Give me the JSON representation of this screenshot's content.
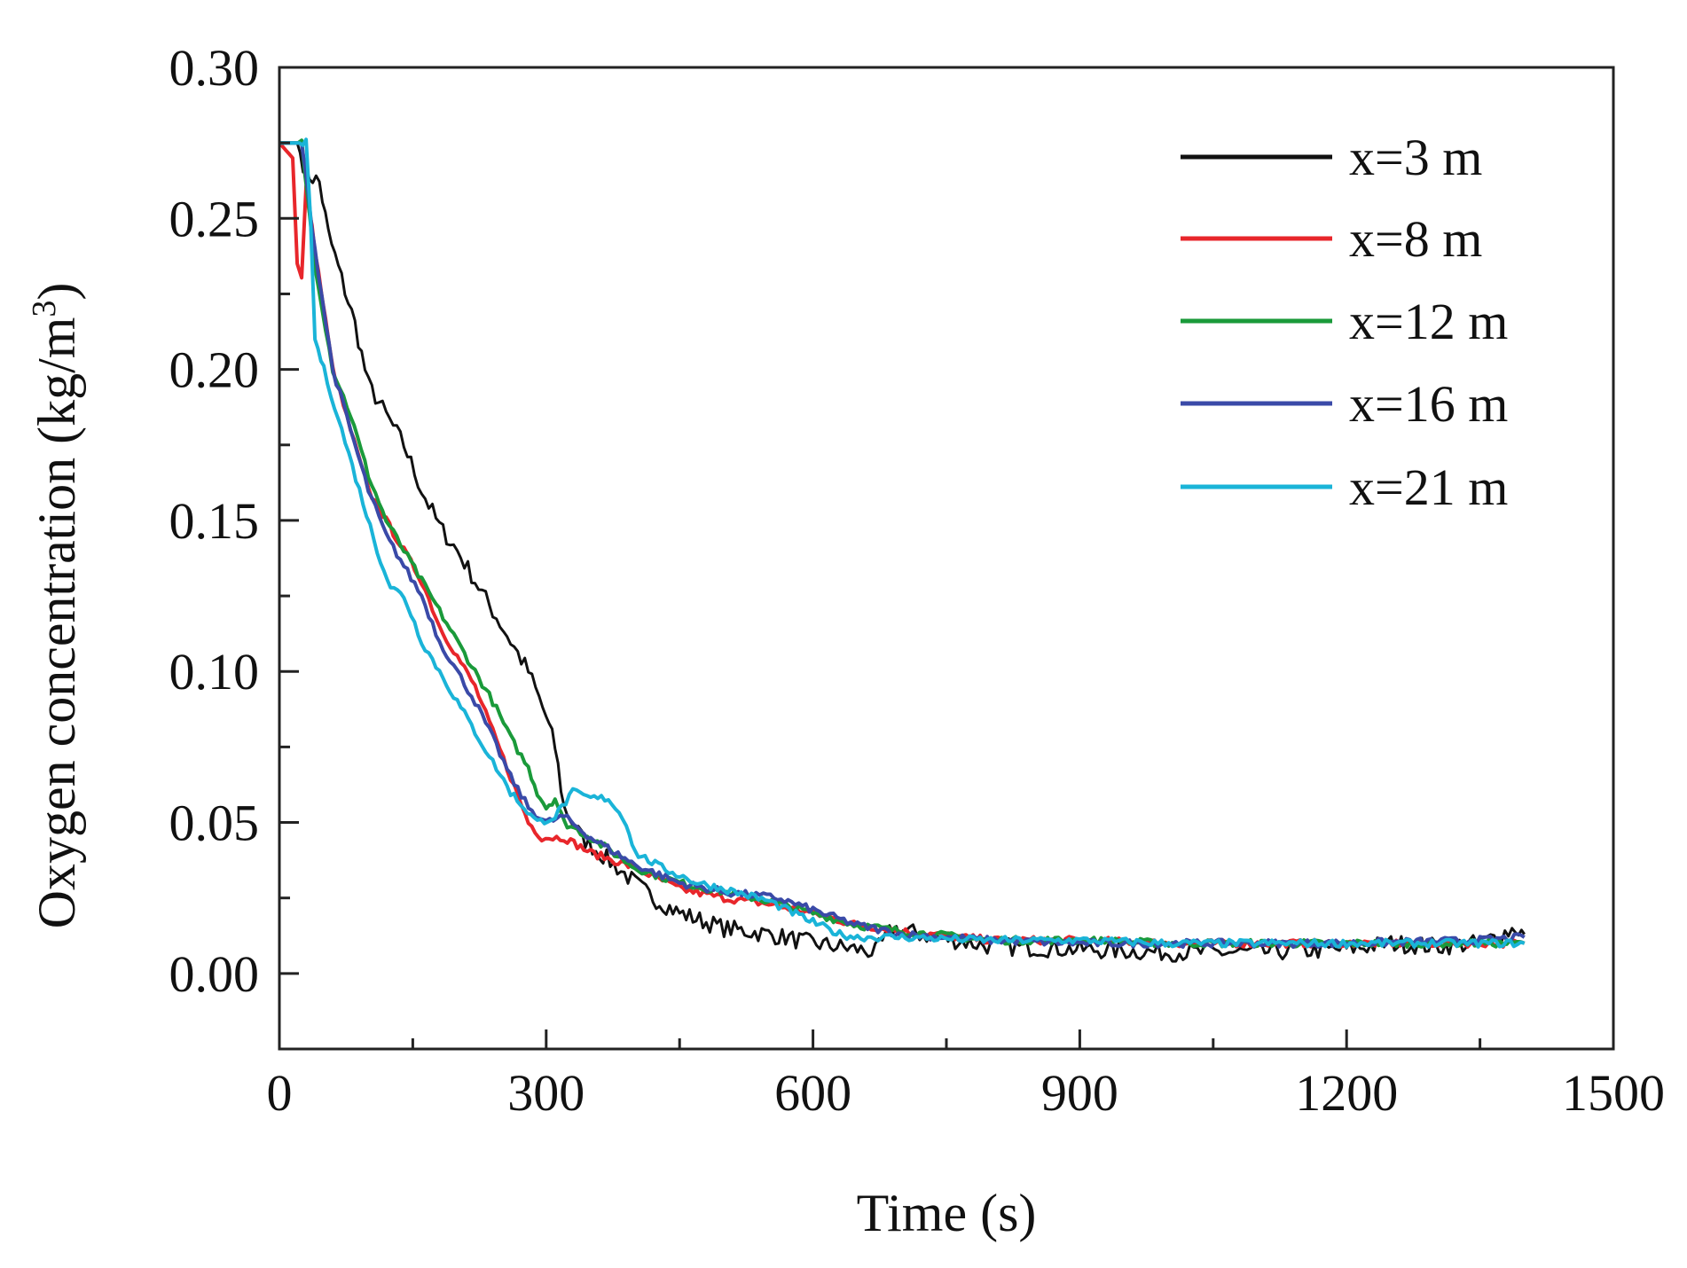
{
  "chart_data": {
    "type": "line",
    "title": "",
    "xlabel": "Time (s)",
    "ylabel": "Oxygen concentration (kg/m",
    "ylabel_superscript": "3",
    "ylabel_close": ")",
    "xlim": [
      0,
      1500
    ],
    "ylim": [
      -0.025,
      0.3
    ],
    "xticks": [
      "0",
      "300",
      "600",
      "900",
      "1200",
      "1500"
    ],
    "xtick_values": [
      0,
      300,
      600,
      900,
      1200,
      1500
    ],
    "yticks": [
      "0.00",
      "0.05",
      "0.10",
      "0.15",
      "0.20",
      "0.25",
      "0.30"
    ],
    "ytick_values": [
      0,
      0.05,
      0.1,
      0.15,
      0.2,
      0.25,
      0.3
    ],
    "grid": false,
    "legend_position": "top-right",
    "series": [
      {
        "name": "x=3 m",
        "color": "#111111",
        "x": [
          0,
          20,
          30,
          45,
          55,
          70,
          85,
          100,
          120,
          140,
          160,
          180,
          200,
          220,
          240,
          260,
          280,
          300,
          310,
          320,
          340,
          360,
          380,
          400,
          420,
          450,
          480,
          500,
          550,
          600,
          650,
          670,
          690,
          720,
          800,
          900,
          1000,
          1100,
          1200,
          1250,
          1300,
          1350,
          1390,
          1400
        ],
        "y": [
          0.275,
          0.275,
          0.265,
          0.262,
          0.245,
          0.23,
          0.215,
          0.195,
          0.185,
          0.175,
          0.16,
          0.148,
          0.14,
          0.13,
          0.12,
          0.11,
          0.1,
          0.085,
          0.075,
          0.055,
          0.045,
          0.04,
          0.035,
          0.03,
          0.025,
          0.02,
          0.017,
          0.015,
          0.013,
          0.01,
          0.008,
          0.007,
          0.015,
          0.013,
          0.009,
          0.008,
          0.007,
          0.007,
          0.008,
          0.01,
          0.009,
          0.01,
          0.015,
          0.013
        ]
      },
      {
        "name": "x=8 m",
        "color": "#e8262b",
        "x": [
          0,
          15,
          20,
          25,
          30,
          40,
          60,
          80,
          100,
          120,
          140,
          160,
          180,
          200,
          220,
          240,
          260,
          280,
          295,
          320,
          350,
          400,
          450,
          500,
          550,
          600,
          650,
          700,
          800,
          900,
          1000,
          1100,
          1200,
          1300,
          1400
        ],
        "y": [
          0.275,
          0.27,
          0.235,
          0.23,
          0.26,
          0.24,
          0.2,
          0.18,
          0.16,
          0.15,
          0.14,
          0.13,
          0.115,
          0.105,
          0.095,
          0.08,
          0.065,
          0.05,
          0.045,
          0.045,
          0.04,
          0.035,
          0.028,
          0.025,
          0.023,
          0.02,
          0.016,
          0.014,
          0.011,
          0.011,
          0.01,
          0.01,
          0.01,
          0.01,
          0.01
        ]
      },
      {
        "name": "x=12 m",
        "color": "#1a9a3a",
        "x": [
          0,
          25,
          40,
          60,
          80,
          100,
          120,
          140,
          160,
          180,
          200,
          220,
          240,
          260,
          280,
          290,
          300,
          310,
          320,
          350,
          400,
          450,
          500,
          550,
          600,
          650,
          700,
          800,
          900,
          1000,
          1200,
          1400
        ],
        "y": [
          0.275,
          0.275,
          0.235,
          0.2,
          0.185,
          0.165,
          0.15,
          0.14,
          0.13,
          0.12,
          0.11,
          0.1,
          0.09,
          0.078,
          0.068,
          0.06,
          0.055,
          0.058,
          0.05,
          0.045,
          0.035,
          0.03,
          0.027,
          0.024,
          0.02,
          0.016,
          0.014,
          0.011,
          0.011,
          0.01,
          0.01,
          0.01
        ]
      },
      {
        "name": "x=16 m",
        "color": "#3a4aa8",
        "x": [
          0,
          25,
          40,
          60,
          80,
          100,
          120,
          140,
          160,
          180,
          200,
          220,
          240,
          260,
          280,
          300,
          320,
          350,
          400,
          450,
          500,
          560,
          600,
          650,
          700,
          800,
          900,
          1000,
          1200,
          1350,
          1400
        ],
        "y": [
          0.275,
          0.275,
          0.24,
          0.2,
          0.18,
          0.16,
          0.145,
          0.135,
          0.125,
          0.11,
          0.1,
          0.09,
          0.078,
          0.065,
          0.055,
          0.05,
          0.052,
          0.045,
          0.036,
          0.03,
          0.027,
          0.025,
          0.021,
          0.016,
          0.013,
          0.011,
          0.01,
          0.01,
          0.01,
          0.011,
          0.012
        ]
      },
      {
        "name": "x=21 m",
        "color": "#1ab4d8",
        "x": [
          0,
          30,
          35,
          40,
          50,
          70,
          90,
          110,
          125,
          140,
          160,
          180,
          200,
          220,
          240,
          260,
          290,
          310,
          330,
          350,
          370,
          390,
          400,
          430,
          470,
          500,
          550,
          600,
          630,
          650,
          700,
          800,
          900,
          1000,
          1200,
          1400
        ],
        "y": [
          0.275,
          0.275,
          0.25,
          0.21,
          0.2,
          0.18,
          0.16,
          0.14,
          0.128,
          0.125,
          0.11,
          0.1,
          0.09,
          0.08,
          0.07,
          0.06,
          0.05,
          0.052,
          0.06,
          0.058,
          0.058,
          0.05,
          0.04,
          0.035,
          0.03,
          0.028,
          0.024,
          0.017,
          0.013,
          0.012,
          0.012,
          0.011,
          0.011,
          0.01,
          0.01,
          0.01
        ]
      }
    ]
  }
}
